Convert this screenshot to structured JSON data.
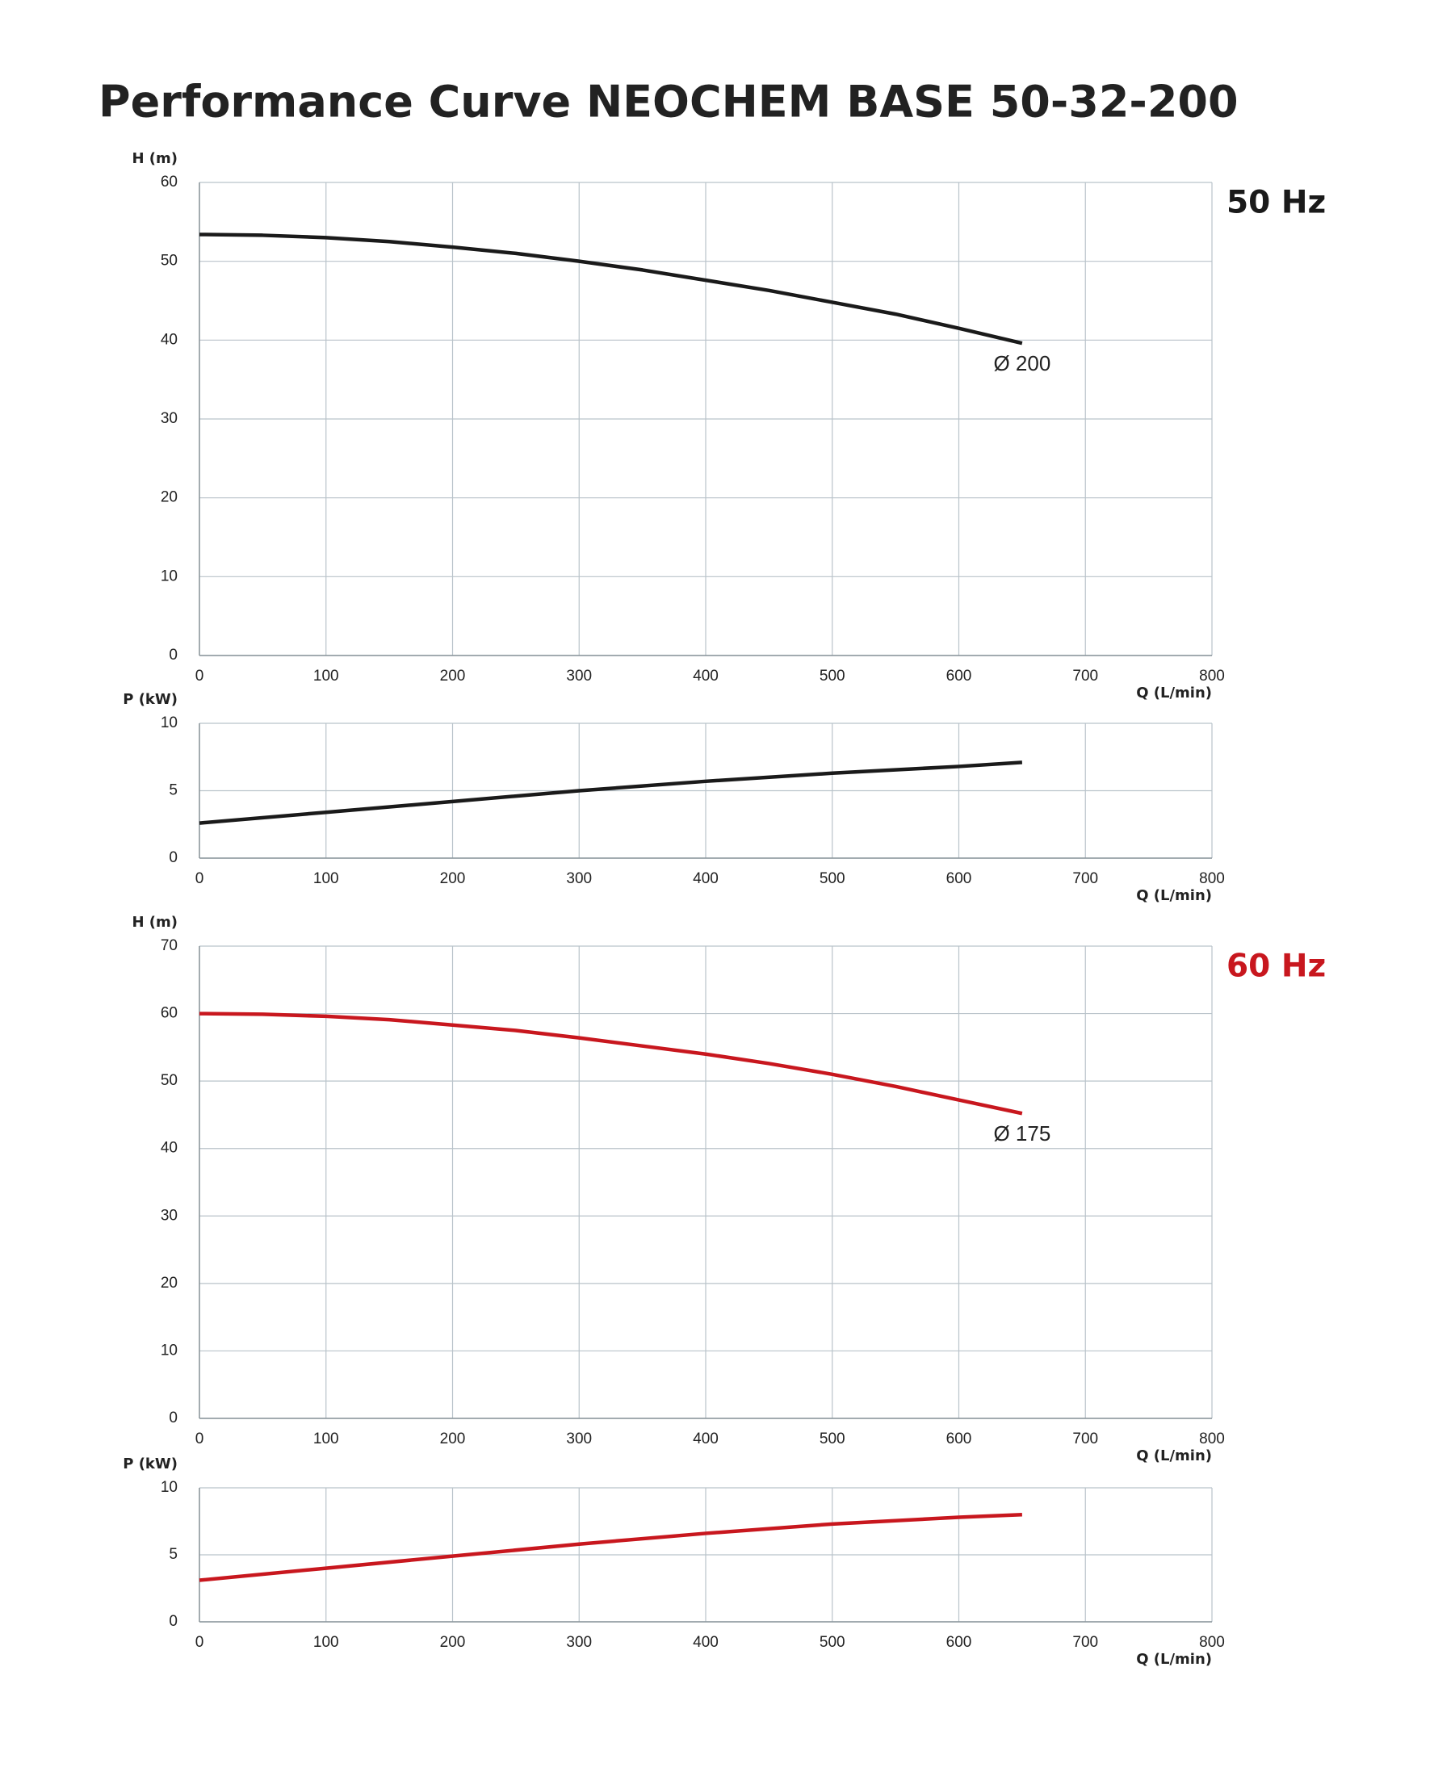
{
  "title": "Performance Curve  NEOCHEM BASE 50-32-200",
  "chart_data": [
    {
      "type": "line",
      "frequency": "50 Hz",
      "frequency_color": "#1a1a1a",
      "curve_label": "Ø 200",
      "ylabel": "H (m)",
      "xlabel": "Q (L/min)",
      "xlim": [
        0,
        800
      ],
      "xticks": [
        0,
        100,
        200,
        300,
        400,
        500,
        600,
        700,
        800
      ],
      "ylim": [
        0,
        60
      ],
      "yticks": [
        0,
        10,
        20,
        30,
        40,
        50,
        60
      ],
      "grid": true,
      "x": [
        0,
        50,
        100,
        150,
        200,
        250,
        300,
        350,
        400,
        450,
        500,
        550,
        600,
        650
      ],
      "series": [
        {
          "color": "#1a1a1a",
          "values": [
            53.4,
            53.3,
            53.0,
            52.5,
            51.8,
            51.0,
            50.0,
            48.9,
            47.6,
            46.3,
            44.8,
            43.3,
            41.5,
            39.6
          ]
        }
      ]
    },
    {
      "type": "line",
      "ylabel": "P (kW)",
      "xlabel": "Q (L/min)",
      "xlim": [
        0,
        800
      ],
      "xticks": [
        0,
        100,
        200,
        300,
        400,
        500,
        600,
        700,
        800
      ],
      "ylim": [
        0,
        10
      ],
      "yticks": [
        0,
        5,
        10
      ],
      "grid": true,
      "x": [
        0,
        100,
        200,
        300,
        400,
        500,
        600,
        650
      ],
      "series": [
        {
          "color": "#1a1a1a",
          "values": [
            2.6,
            3.4,
            4.2,
            5.0,
            5.7,
            6.3,
            6.8,
            7.1
          ]
        }
      ]
    },
    {
      "type": "line",
      "frequency": "60 Hz",
      "frequency_color": "#c8171e",
      "curve_label": "Ø 175",
      "ylabel": "H (m)",
      "xlabel": "Q (L/min)",
      "xlim": [
        0,
        800
      ],
      "xticks": [
        0,
        100,
        200,
        300,
        400,
        500,
        600,
        700,
        800
      ],
      "ylim": [
        0,
        70
      ],
      "yticks": [
        0,
        10,
        20,
        30,
        40,
        50,
        60,
        70
      ],
      "grid": true,
      "x": [
        0,
        50,
        100,
        150,
        200,
        250,
        300,
        350,
        400,
        450,
        500,
        550,
        600,
        650
      ],
      "series": [
        {
          "color": "#c8171e",
          "values": [
            60.0,
            59.9,
            59.6,
            59.1,
            58.3,
            57.5,
            56.4,
            55.2,
            54.0,
            52.6,
            51.0,
            49.2,
            47.2,
            45.2
          ]
        }
      ]
    },
    {
      "type": "line",
      "ylabel": "P (kW)",
      "xlabel": "Q (L/min)",
      "xlim": [
        0,
        800
      ],
      "xticks": [
        0,
        100,
        200,
        300,
        400,
        500,
        600,
        700,
        800
      ],
      "ylim": [
        0,
        10
      ],
      "yticks": [
        0,
        5,
        10
      ],
      "grid": true,
      "x": [
        0,
        100,
        200,
        300,
        400,
        500,
        600,
        650
      ],
      "series": [
        {
          "color": "#c8171e",
          "values": [
            3.1,
            4.0,
            4.9,
            5.8,
            6.6,
            7.3,
            7.8,
            8.0
          ]
        }
      ]
    }
  ]
}
